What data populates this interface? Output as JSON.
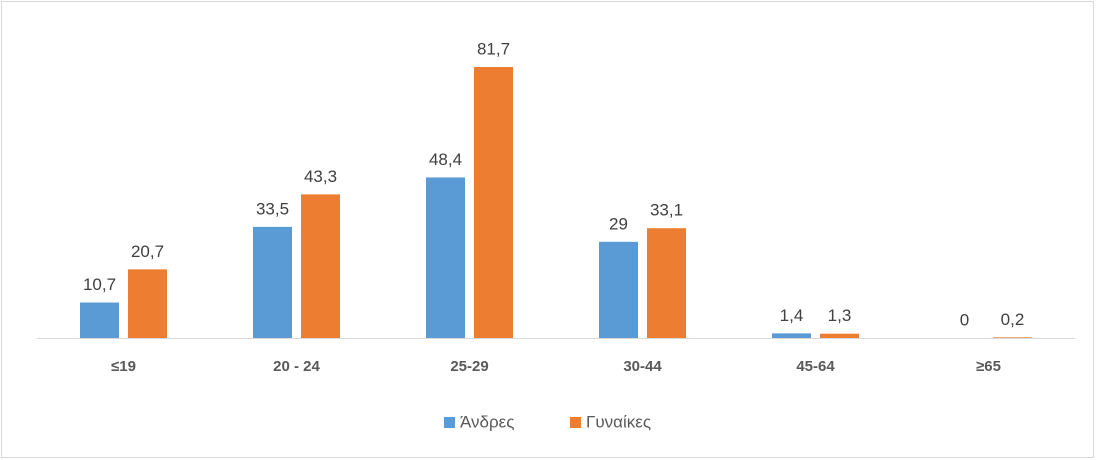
{
  "chart_data": {
    "type": "bar",
    "categories": [
      "≤19",
      "20 - 24",
      "25-29",
      "30-44",
      "45-64",
      "≥65"
    ],
    "series": [
      {
        "name": "Άνδρες",
        "color": "#5b9bd5",
        "values": [
          10.7,
          33.5,
          48.4,
          29,
          1.4,
          0
        ],
        "value_labels": [
          "10,7",
          "33,5",
          "48,4",
          "29",
          "1,4",
          "0"
        ]
      },
      {
        "name": "Γυναίκες",
        "color": "#ed7d31",
        "values": [
          20.7,
          43.3,
          81.7,
          33.1,
          1.3,
          0.2
        ],
        "value_labels": [
          "20,7",
          "43,3",
          "81,7",
          "33,1",
          "1,3",
          "0,2"
        ]
      }
    ],
    "legend": "bottom"
  }
}
